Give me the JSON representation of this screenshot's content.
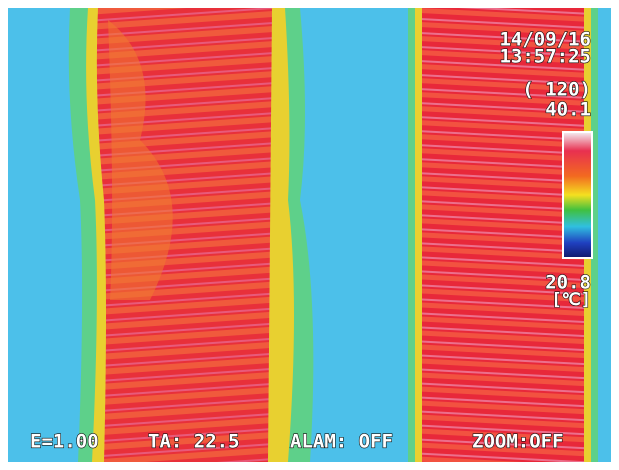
{
  "overlay": {
    "date": "14/09/16",
    "time": "13:57:25",
    "count": "( 120)",
    "scale_max": "40.1",
    "scale_min": "20.8",
    "unit": "[℃]",
    "status": {
      "emissivity": "E=1.00",
      "ambient": "TA: 22.5",
      "alarm": "ALAM: OFF",
      "zoom": "ZOOM:OFF"
    }
  }
}
